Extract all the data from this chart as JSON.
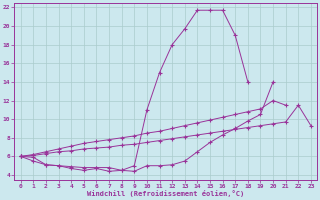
{
  "xlabel": "Windchill (Refroidissement éolien,°C)",
  "bg_color": "#cce8ee",
  "grid_color": "#aacccc",
  "line_color": "#993399",
  "xlim": [
    -0.5,
    23.5
  ],
  "ylim": [
    3.5,
    22.5
  ],
  "xticks": [
    0,
    1,
    2,
    3,
    4,
    5,
    6,
    7,
    8,
    9,
    10,
    11,
    12,
    13,
    14,
    15,
    16,
    17,
    18,
    19,
    20,
    21,
    22,
    23
  ],
  "yticks": [
    4,
    6,
    8,
    10,
    12,
    14,
    16,
    18,
    20,
    22
  ],
  "curve1_x": [
    0,
    1,
    2,
    3,
    4,
    5,
    6,
    7,
    8,
    9,
    10,
    11,
    12,
    13,
    14,
    15,
    16,
    17,
    18
  ],
  "curve1_y": [
    6.0,
    5.5,
    5.1,
    5.0,
    4.7,
    4.5,
    4.7,
    4.4,
    4.5,
    5.0,
    11.0,
    15.0,
    18.0,
    19.7,
    21.7,
    21.7,
    21.7,
    19.0,
    14.0
  ],
  "curve2_x": [
    0,
    1,
    2,
    3,
    4,
    5,
    6,
    7,
    8,
    9,
    10,
    11,
    12,
    13,
    14,
    15,
    16,
    17,
    18,
    19,
    20,
    21
  ],
  "curve2_y": [
    6.0,
    6.2,
    6.5,
    6.8,
    7.1,
    7.4,
    7.6,
    7.8,
    8.0,
    8.2,
    8.5,
    8.7,
    9.0,
    9.3,
    9.6,
    9.9,
    10.2,
    10.5,
    10.8,
    11.1,
    12.0,
    11.5
  ],
  "curve3_x": [
    0,
    1,
    2,
    3,
    4,
    5,
    6,
    7,
    8,
    9,
    10,
    11,
    12,
    13,
    14,
    15,
    16,
    17,
    18,
    19,
    20,
    21,
    22,
    23
  ],
  "curve3_y": [
    6.0,
    6.1,
    6.3,
    6.5,
    6.6,
    6.8,
    6.9,
    7.0,
    7.2,
    7.3,
    7.5,
    7.7,
    7.9,
    8.1,
    8.3,
    8.5,
    8.7,
    8.9,
    9.1,
    9.3,
    9.5,
    9.7,
    11.5,
    9.3
  ],
  "curve4_x": [
    0,
    1,
    2,
    3,
    4,
    5,
    6,
    7,
    8,
    9,
    10,
    11,
    12,
    13,
    14,
    15,
    16,
    17,
    18,
    19,
    20
  ],
  "curve4_y": [
    6.0,
    5.9,
    5.1,
    5.0,
    4.9,
    4.8,
    4.8,
    4.8,
    4.5,
    4.4,
    5.0,
    5.0,
    5.1,
    5.5,
    6.5,
    7.5,
    8.3,
    9.0,
    9.8,
    10.5,
    14.0
  ]
}
